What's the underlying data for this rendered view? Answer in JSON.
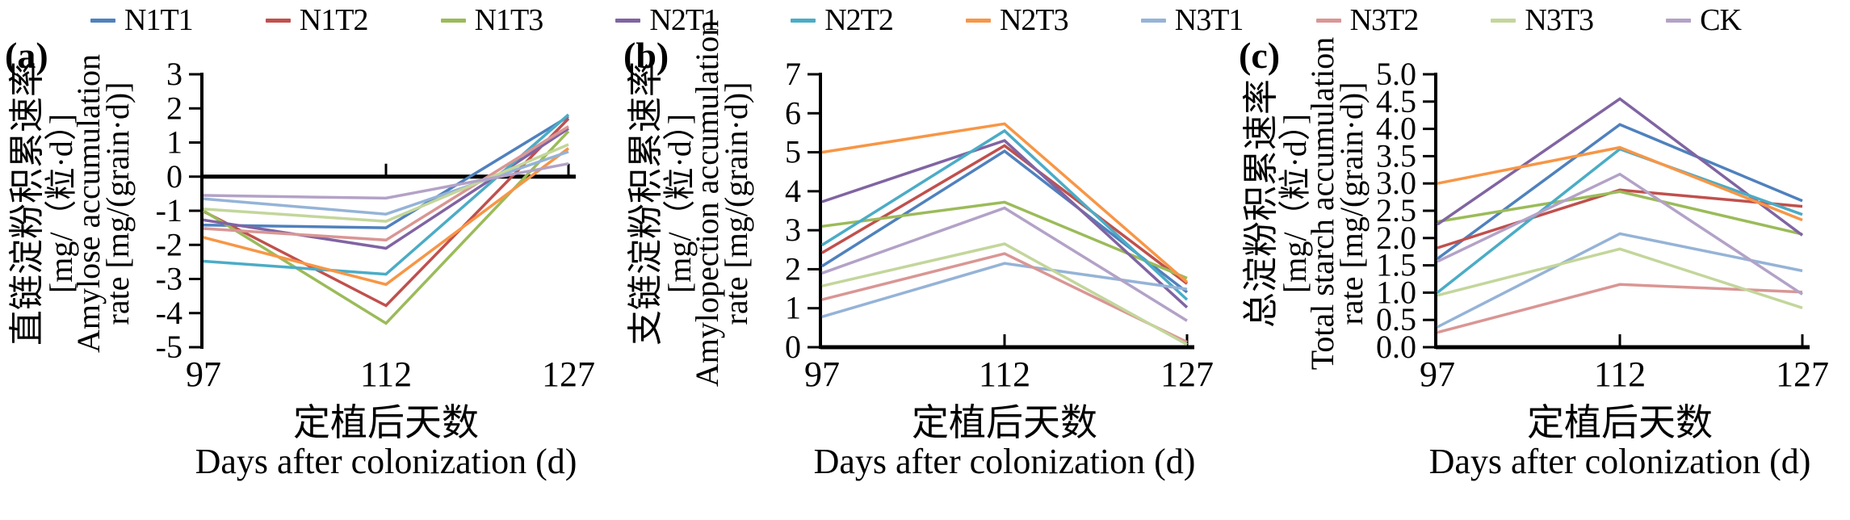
{
  "legend": {
    "items": [
      {
        "label": "N1T1",
        "color": "#4F81BD"
      },
      {
        "label": "N1T2",
        "color": "#C0504D"
      },
      {
        "label": "N1T3",
        "color": "#9BBB59"
      },
      {
        "label": "N2T1",
        "color": "#8064A2"
      },
      {
        "label": "N2T2",
        "color": "#4BACC6"
      },
      {
        "label": "N2T3",
        "color": "#F79646"
      },
      {
        "label": "N3T1",
        "color": "#95B3D7"
      },
      {
        "label": "N3T2",
        "color": "#D99694"
      },
      {
        "label": "N3T3",
        "color": "#C3D69B"
      },
      {
        "label": "CK",
        "color": "#B3A2C7"
      }
    ]
  },
  "x_axis": {
    "title_zh": "定植后天数",
    "title_en": "Days after colonization (d)"
  },
  "panels": [
    {
      "letter": "(a)",
      "title_zh": "直链淀粉积累速率",
      "title_unit": "[mg/（粒·d）]",
      "title_en1": "Amylose accumulation",
      "title_en2": "rate [mg/(grain·d)]"
    },
    {
      "letter": "(b)",
      "title_zh": "支链淀粉积累速率",
      "title_unit": "[mg/（粒·d）]",
      "title_en1": "Amylopection accumulation",
      "title_en2": "rate [mg/(grain·d)]"
    },
    {
      "letter": "(c)",
      "title_zh": "总淀粉积累速率",
      "title_unit": "[mg/（粒·d）]",
      "title_en1": "Total starch accumulation",
      "title_en2": "rate [mg/(grain·d)]"
    }
  ],
  "chart_data": [
    {
      "type": "line",
      "title": "Amylose accumulation rate [mg/(grain·d)]",
      "xlabel": "Days after colonization (d)",
      "x": [
        97,
        112,
        127
      ],
      "ylim": [
        -5,
        3
      ],
      "ytick_step": 1,
      "ytick_decimals": 0,
      "grid": false,
      "legend_position": "top-shared",
      "series": [
        {
          "name": "N1T1",
          "color": "#4F81BD",
          "values": [
            -1.42,
            -1.5,
            1.76
          ]
        },
        {
          "name": "N1T2",
          "color": "#C0504D",
          "values": [
            -1.02,
            -3.78,
            1.7
          ]
        },
        {
          "name": "N1T3",
          "color": "#9BBB59",
          "values": [
            -1.0,
            -4.3,
            1.33
          ]
        },
        {
          "name": "N2T1",
          "color": "#8064A2",
          "values": [
            -1.27,
            -2.1,
            1.41
          ]
        },
        {
          "name": "N2T2",
          "color": "#4BACC6",
          "values": [
            -2.48,
            -2.86,
            1.82
          ]
        },
        {
          "name": "N2T3",
          "color": "#F79646",
          "values": [
            -1.78,
            -3.16,
            0.83
          ]
        },
        {
          "name": "N3T1",
          "color": "#95B3D7",
          "values": [
            -0.65,
            -1.1,
            0.73
          ]
        },
        {
          "name": "N3T2",
          "color": "#D99694",
          "values": [
            -1.52,
            -1.86,
            1.47
          ]
        },
        {
          "name": "N3T3",
          "color": "#C3D69B",
          "values": [
            -0.95,
            -1.31,
            0.94
          ]
        },
        {
          "name": "CK",
          "color": "#B3A2C7",
          "values": [
            -0.55,
            -0.63,
            0.38
          ]
        }
      ]
    },
    {
      "type": "line",
      "title": "Amylopection accumulation rate [mg/(grain·d)]",
      "xlabel": "Days after colonization (d)",
      "x": [
        97,
        112,
        127
      ],
      "ylim": [
        0,
        7
      ],
      "ytick_step": 1,
      "ytick_decimals": 0,
      "grid": false,
      "legend_position": "top-shared",
      "series": [
        {
          "name": "N1T1",
          "color": "#4F81BD",
          "values": [
            2.08,
            5.03,
            1.41
          ]
        },
        {
          "name": "N1T2",
          "color": "#C0504D",
          "values": [
            2.42,
            5.17,
            1.63
          ]
        },
        {
          "name": "N1T3",
          "color": "#9BBB59",
          "values": [
            3.1,
            3.72,
            1.77
          ]
        },
        {
          "name": "N2T1",
          "color": "#8064A2",
          "values": [
            3.73,
            5.3,
            1.02
          ]
        },
        {
          "name": "N2T2",
          "color": "#4BACC6",
          "values": [
            2.62,
            5.55,
            1.22
          ]
        },
        {
          "name": "N2T3",
          "color": "#F79646",
          "values": [
            5.0,
            5.73,
            1.67
          ]
        },
        {
          "name": "N3T1",
          "color": "#95B3D7",
          "values": [
            0.78,
            2.15,
            1.49
          ]
        },
        {
          "name": "N3T2",
          "color": "#D99694",
          "values": [
            1.22,
            2.4,
            0.13
          ]
        },
        {
          "name": "N3T3",
          "color": "#C3D69B",
          "values": [
            1.57,
            2.65,
            0.07
          ]
        },
        {
          "name": "CK",
          "color": "#B3A2C7",
          "values": [
            1.9,
            3.57,
            0.68
          ]
        }
      ]
    },
    {
      "type": "line",
      "title": "Total starch accumulation rate [mg/(grain·d)]",
      "xlabel": "Days after colonization (d)",
      "x": [
        97,
        112,
        127
      ],
      "ylim": [
        0,
        5
      ],
      "ytick_step": 0.5,
      "ytick_decimals": 1,
      "grid": false,
      "legend_position": "top-shared",
      "series": [
        {
          "name": "N1T1",
          "color": "#4F81BD",
          "values": [
            1.62,
            4.08,
            2.68
          ]
        },
        {
          "name": "N1T2",
          "color": "#C0504D",
          "values": [
            1.82,
            2.88,
            2.58
          ]
        },
        {
          "name": "N1T3",
          "color": "#9BBB59",
          "values": [
            2.3,
            2.85,
            2.07
          ]
        },
        {
          "name": "N2T1",
          "color": "#8064A2",
          "values": [
            2.25,
            4.55,
            2.05
          ]
        },
        {
          "name": "N2T2",
          "color": "#4BACC6",
          "values": [
            1.0,
            3.63,
            2.43
          ]
        },
        {
          "name": "N2T3",
          "color": "#F79646",
          "values": [
            3.0,
            3.66,
            2.33
          ]
        },
        {
          "name": "N3T1",
          "color": "#95B3D7",
          "values": [
            0.37,
            2.08,
            1.4
          ]
        },
        {
          "name": "N3T2",
          "color": "#D99694",
          "values": [
            0.27,
            1.15,
            1.01
          ]
        },
        {
          "name": "N3T3",
          "color": "#C3D69B",
          "values": [
            0.95,
            1.8,
            0.72
          ]
        },
        {
          "name": "CK",
          "color": "#B3A2C7",
          "values": [
            1.57,
            3.17,
            0.97
          ]
        }
      ]
    }
  ]
}
